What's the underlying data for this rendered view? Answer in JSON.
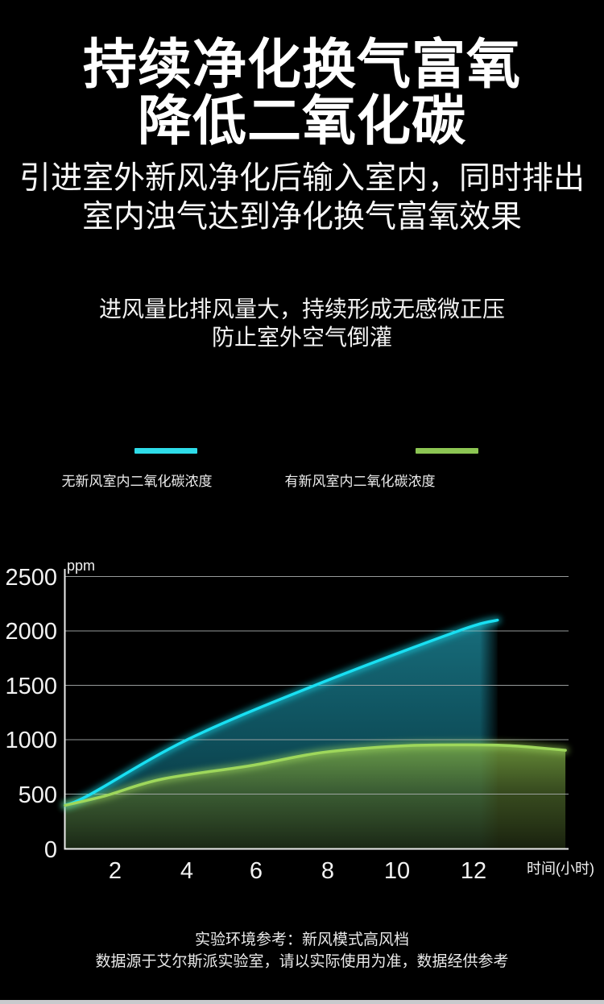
{
  "page": {
    "background": "#000000",
    "bottom_bar_color": "#c9cacd"
  },
  "header": {
    "title_line1": "持续净化换气富氧",
    "title_line2": "降低二氧化碳",
    "subtitle_line1": "引进室外新风净化后输入室内，同时排出",
    "subtitle_line2": "室内浊气达到净化换气富氧效果"
  },
  "note": {
    "line1": "进风量比排风量大，持续形成无感微正压",
    "line2": "防止室外空气倒灌"
  },
  "legend": {
    "items": [
      {
        "label": "无新风室内二氧化碳浓度",
        "color": "#2edce9"
      },
      {
        "label": "有新风室内二氧化碳浓度",
        "color": "#8cc553"
      }
    ]
  },
  "chart_data": {
    "type": "line",
    "y_unit_label": "ppm",
    "x_axis_label": "时间(小时)",
    "ylim": [
      0,
      2500
    ],
    "xlim_hours": [
      0.6,
      14.7
    ],
    "grid": true,
    "legend_position": "above-chart",
    "yticks": [
      "2500",
      "2000",
      "1500",
      "1000",
      "500",
      "0"
    ],
    "xticks": [
      "2",
      "4",
      "6",
      "8",
      "10",
      "12"
    ],
    "series": [
      {
        "name": "无新风室内二氧化碳浓度",
        "color": "#19dff2",
        "area": "teal-gradient-fading-right-edge",
        "hours": [
          0.6,
          1.3,
          4.0,
          7.5,
          11.6,
          12.7
        ],
        "ppm": [
          400,
          500,
          1000,
          1490,
          2000,
          2100
        ]
      },
      {
        "name": "有新风室内二氧化碳浓度",
        "color": "#9ed75b",
        "area": "olive-green-gradient",
        "hours": [
          0.6,
          1.75,
          3.3,
          5.8,
          7.8,
          10.0,
          11.9,
          13.2,
          14.6
        ],
        "ppm": [
          400,
          490,
          640,
          765,
          885,
          945,
          955,
          945,
          905
        ]
      }
    ]
  },
  "footer": {
    "line1": "实验环境参考：新风模式高风档",
    "line2": "数据源于艾尔斯派实验室，请以实际使用为准，数据经供参考"
  }
}
